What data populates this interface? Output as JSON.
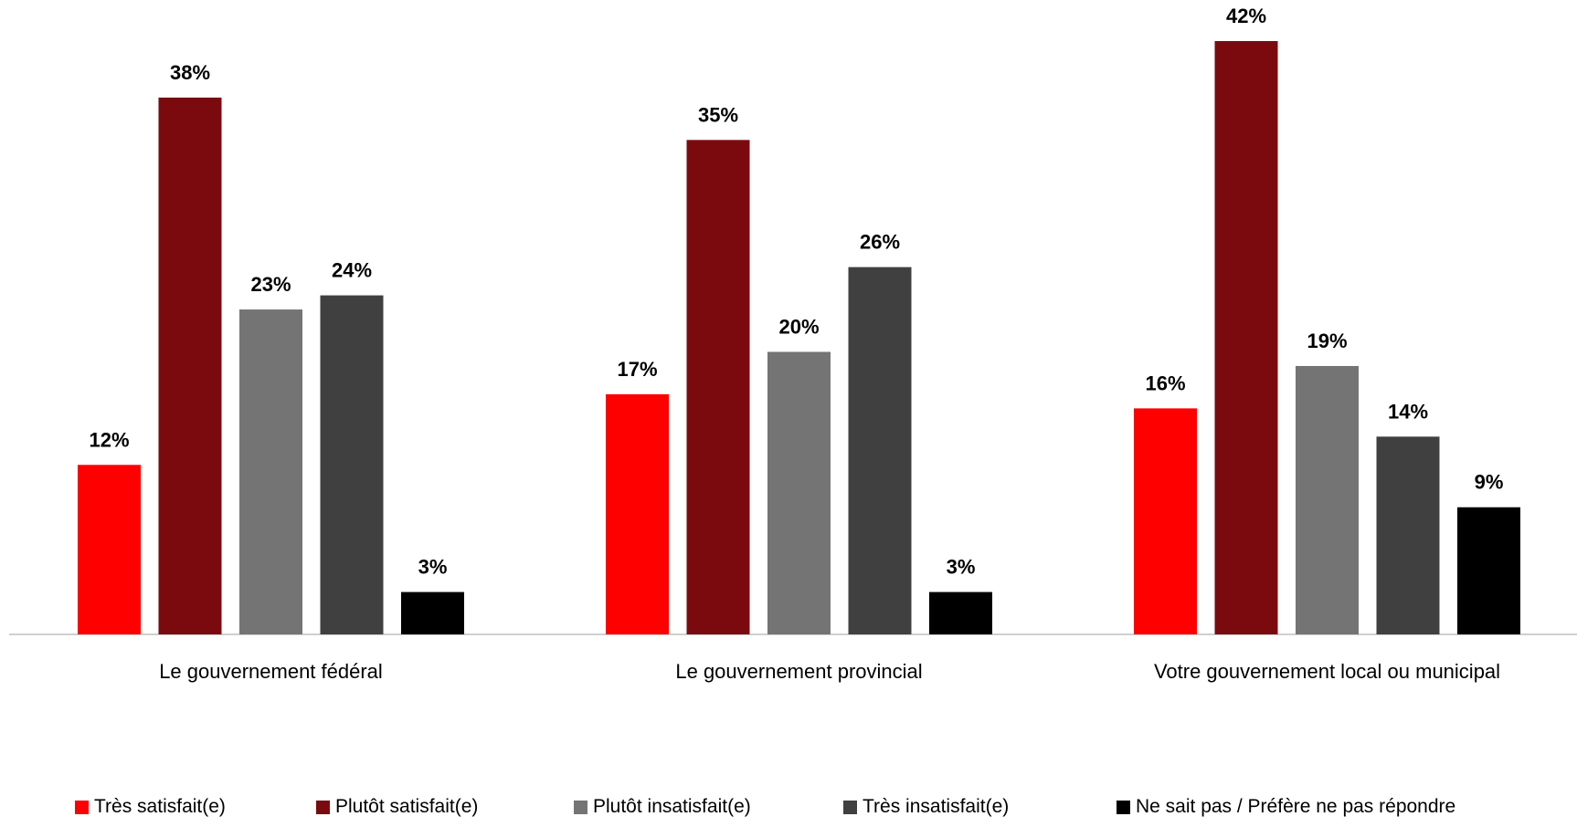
{
  "chart_data": {
    "type": "bar",
    "categories": [
      "Le gouvernement fédéral",
      "Le gouvernement provincial",
      "Votre gouvernement local ou municipal"
    ],
    "series": [
      {
        "name": "Très satisfait(e)",
        "color": "#ff0000",
        "values": [
          12,
          17,
          16
        ],
        "labels": [
          "12%",
          "17%",
          "16%"
        ]
      },
      {
        "name": "Plutôt satisfait(e)",
        "color": "#7b0a0f",
        "values": [
          38,
          35,
          42
        ],
        "labels": [
          "38%",
          "35%",
          "42%"
        ]
      },
      {
        "name": "Plutôt insatisfait(e)",
        "color": "#747474",
        "values": [
          23,
          20,
          19
        ],
        "labels": [
          "23%",
          "20%",
          "19%"
        ]
      },
      {
        "name": "Très insatisfait(e)",
        "color": "#404040",
        "values": [
          24,
          26,
          14
        ],
        "labels": [
          "24%",
          "26%",
          "14%"
        ]
      },
      {
        "name": "Ne sait pas / Préfère ne pas répondre",
        "color": "#000000",
        "values": [
          3,
          3,
          9
        ],
        "labels": [
          "3%",
          "3%",
          "9%"
        ]
      }
    ],
    "ylim": [
      0,
      45
    ],
    "grid": false,
    "legend_position": "bottom"
  }
}
